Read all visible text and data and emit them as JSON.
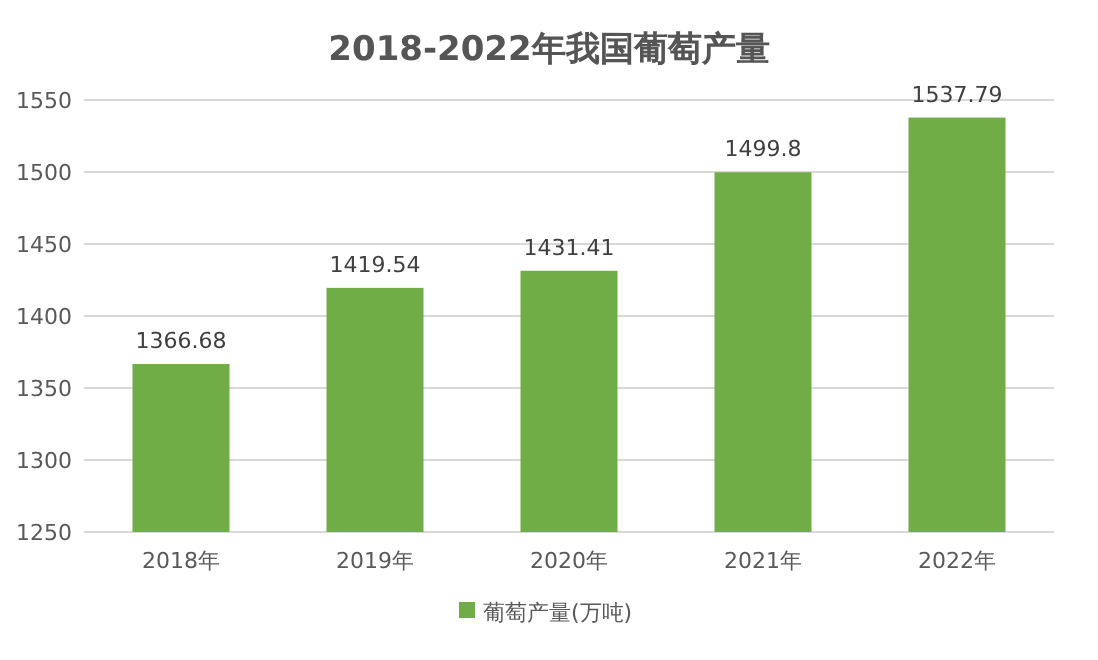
{
  "chart_data": {
    "type": "bar",
    "title": "2018-2022年我国葡萄产量",
    "categories": [
      "2018年",
      "2019年",
      "2020年",
      "2021年",
      "2022年"
    ],
    "series": [
      {
        "name": "葡萄产量(万吨)",
        "color": "#70ad47",
        "values": [
          1366.68,
          1419.54,
          1431.41,
          1499.8,
          1537.79
        ]
      }
    ],
    "ylim": [
      1250,
      1550
    ],
    "yticks": [
      1250,
      1300,
      1350,
      1400,
      1450,
      1500,
      1550
    ],
    "grid": "y",
    "legend": "bottom",
    "data_labels": true
  }
}
